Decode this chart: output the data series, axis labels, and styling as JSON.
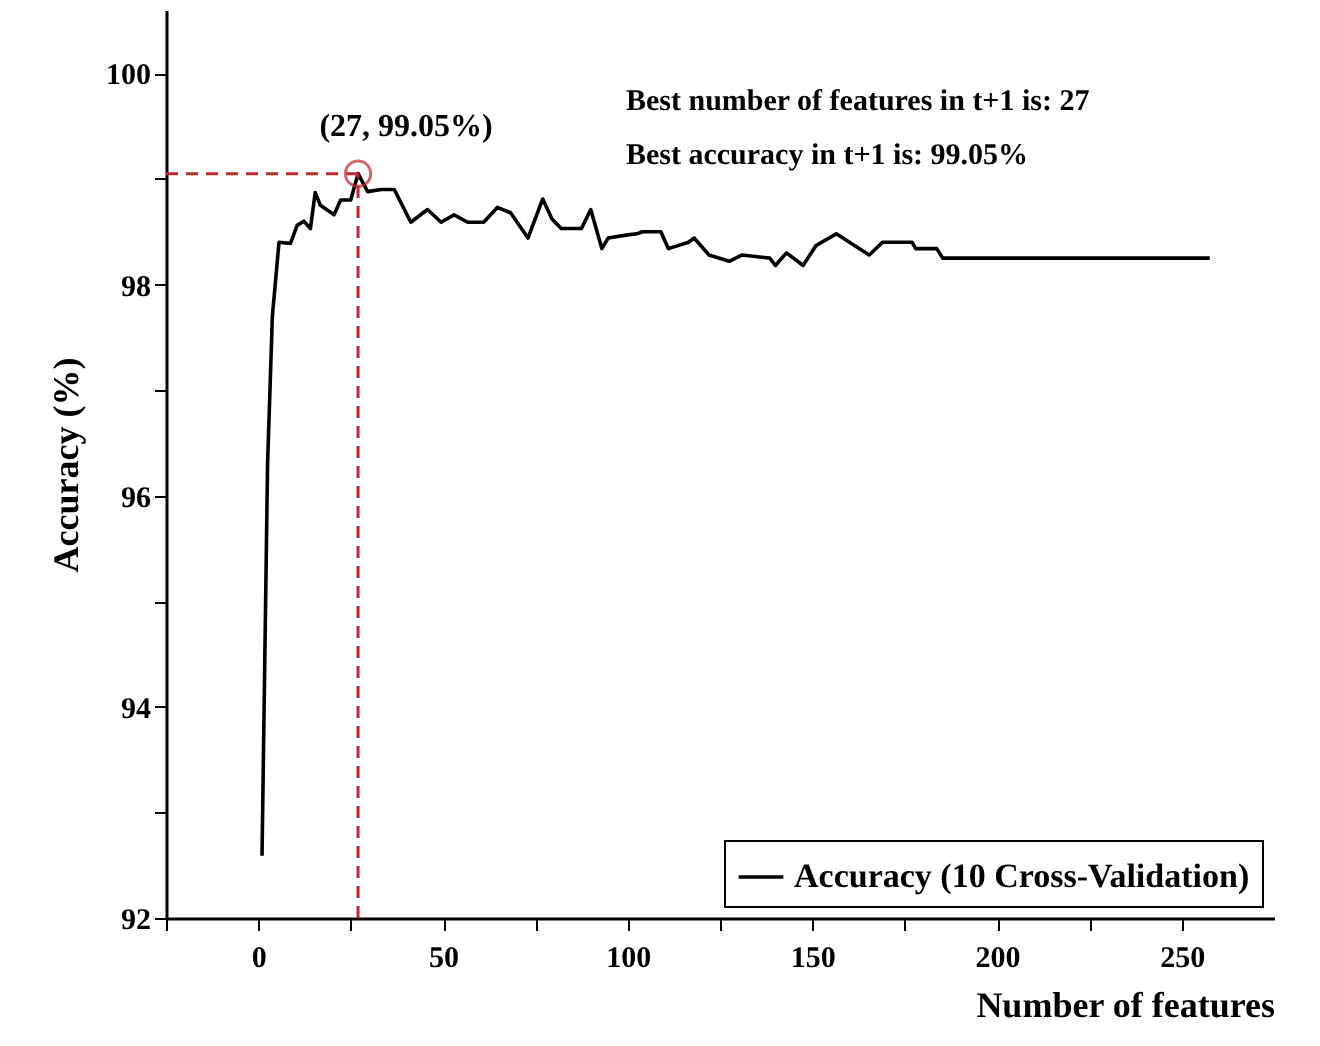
{
  "chart_data": {
    "type": "line",
    "xlabel": "Number of features",
    "ylabel": "Accuracy (%)",
    "annotations": [
      {
        "text": "(27, 99.05%)",
        "x": 27,
        "y": 99.05
      },
      "Best number of features in t+1 is: 27",
      "Best accuracy in t+1 is: 99.05%"
    ],
    "series": [
      {
        "name": "Accuracy (10 Cross-Validation)",
        "color": "#000000",
        "x": [
          1,
          2.5,
          3.8,
          5.6,
          8.7,
          10.5,
          12.3,
          14.1,
          15.4,
          16.8,
          20.5,
          22.3,
          25,
          27,
          29.6,
          33.2,
          36.8,
          41.3,
          45.8,
          49.5,
          53,
          56.7,
          61,
          64.7,
          68.3,
          73,
          77,
          79.5,
          82,
          87.5,
          90,
          93,
          94.7,
          100,
          102.5,
          104,
          109,
          111,
          116.5,
          118,
          122,
          127.5,
          131,
          138.5,
          140,
          143,
          147.5,
          151,
          156.5,
          165.4,
          169,
          177,
          178,
          183.7,
          185.3,
          257.6
        ],
        "values": [
          92.59,
          96.3,
          97.7,
          98.4,
          98.39,
          98.56,
          98.6,
          98.53,
          98.87,
          98.75,
          98.66,
          98.8,
          98.8,
          99.05,
          98.88,
          98.9,
          98.9,
          98.59,
          98.71,
          98.59,
          98.66,
          98.59,
          98.59,
          98.73,
          98.68,
          98.44,
          98.81,
          98.62,
          98.53,
          98.53,
          98.71,
          98.34,
          98.44,
          98.47,
          98.48,
          98.5,
          98.5,
          98.34,
          98.4,
          98.44,
          98.28,
          98.22,
          98.28,
          98.25,
          98.18,
          98.3,
          98.18,
          98.37,
          98.48,
          98.28,
          98.4,
          98.4,
          98.34,
          98.34,
          98.25,
          98.25
        ]
      }
    ],
    "ref_lines": [
      {
        "axis": "x",
        "value": 27,
        "color": "#c0282d",
        "line_style": "dashed"
      },
      {
        "axis": "y",
        "value": 99.05,
        "color": "#c0282d",
        "line_style": "dashed"
      }
    ],
    "xlim": [
      -25,
      275
    ],
    "xticks": [
      {
        "value": -25,
        "label": null
      },
      0,
      {
        "value": 25,
        "label": null
      },
      50,
      {
        "value": 75,
        "label": null
      },
      100,
      {
        "value": 125,
        "label": null
      },
      150,
      {
        "value": 175,
        "label": null
      },
      200,
      {
        "value": 225,
        "label": null
      },
      250
    ],
    "ylim": [
      92,
      100.6
    ],
    "yticks": [
      92,
      {
        "value": 93,
        "label": null
      },
      94,
      {
        "value": 95,
        "label": null
      },
      96,
      {
        "value": 97,
        "label": null
      },
      98,
      {
        "value": 99,
        "label": null
      },
      100
    ],
    "grid": false,
    "legend": "bottom right",
    "line_style": "solid",
    "marker": "none"
  }
}
